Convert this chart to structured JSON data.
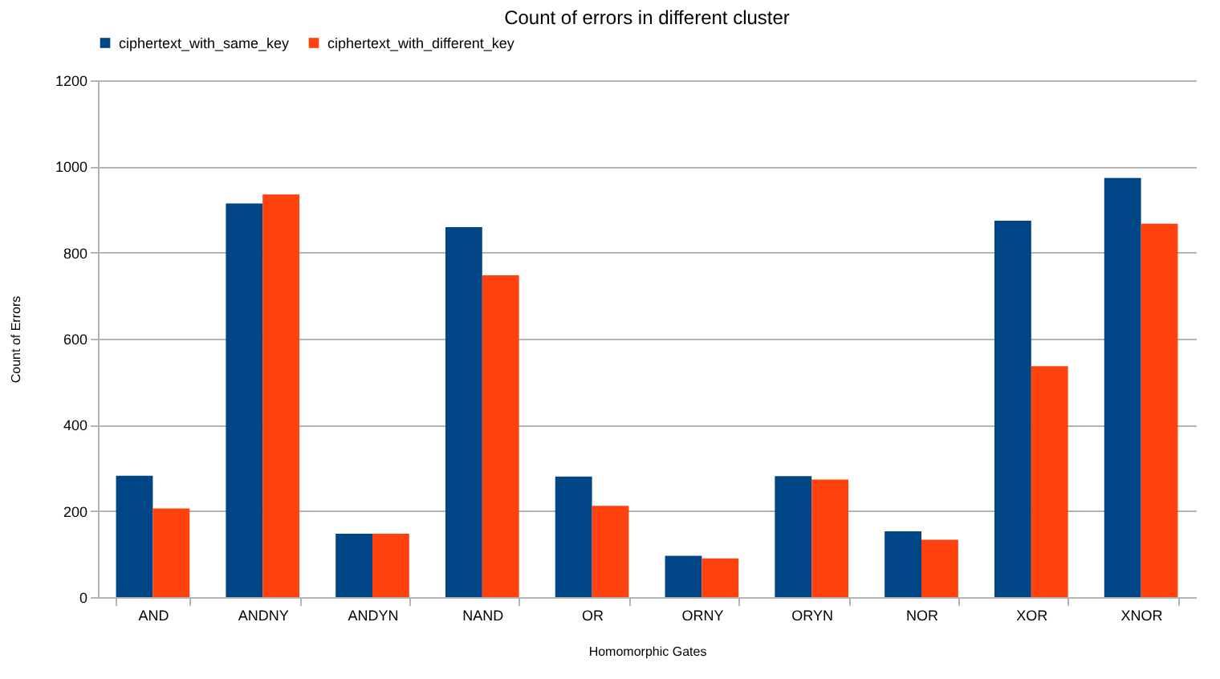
{
  "chart_data": {
    "type": "bar",
    "title": "Count of errors in different cluster",
    "xlabel": "Homomorphic Gates",
    "ylabel": "Count of Errors",
    "categories": [
      "AND",
      "ANDNY",
      "ANDYN",
      "NAND",
      "OR",
      "ORNY",
      "ORYN",
      "NOR",
      "XOR",
      "XNOR"
    ],
    "series": [
      {
        "name": "ciphertext_with_same_key",
        "color": "#004586",
        "values": [
          282,
          914,
          147,
          859,
          280,
          96,
          281,
          153,
          874,
          973
        ]
      },
      {
        "name": "ciphertext_with_different_key",
        "color": "#ff420e",
        "values": [
          206,
          935,
          147,
          747,
          212,
          90,
          273,
          133,
          536,
          867
        ]
      }
    ],
    "ylim": [
      0,
      1200
    ],
    "yticks": [
      0,
      200,
      400,
      600,
      800,
      1000,
      1200
    ],
    "grid": "y",
    "legend": "top"
  }
}
